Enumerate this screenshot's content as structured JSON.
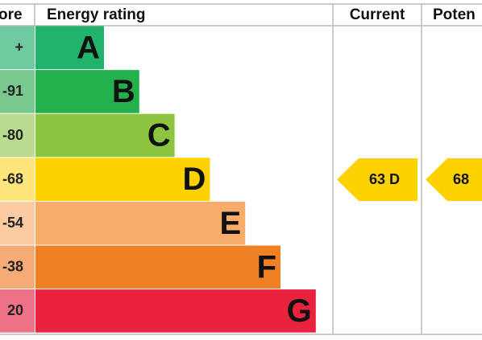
{
  "header": {
    "score": "ore",
    "rating": "Energy rating",
    "current": "Current",
    "potential": "Poten"
  },
  "rows": [
    {
      "score": "+",
      "letter": "A",
      "color": "#21b36b",
      "light": "#6fcaa0"
    },
    {
      "score": "-91",
      "letter": "B",
      "color": "#23b14d",
      "light": "#79c98e"
    },
    {
      "score": "-80",
      "letter": "C",
      "color": "#8cc63f",
      "light": "#badc8e"
    },
    {
      "score": "-68",
      "letter": "D",
      "color": "#fed200",
      "light": "#fde57a"
    },
    {
      "score": "-54",
      "letter": "E",
      "color": "#f8ac6a",
      "light": "#fbcba2"
    },
    {
      "score": "-38",
      "letter": "F",
      "color": "#ef8023",
      "light": "#f4ab75"
    },
    {
      "score": "20",
      "letter": "G",
      "color": "#e9233d",
      "light": "#ef7188"
    }
  ],
  "current": "63 D",
  "potential": "68"
}
